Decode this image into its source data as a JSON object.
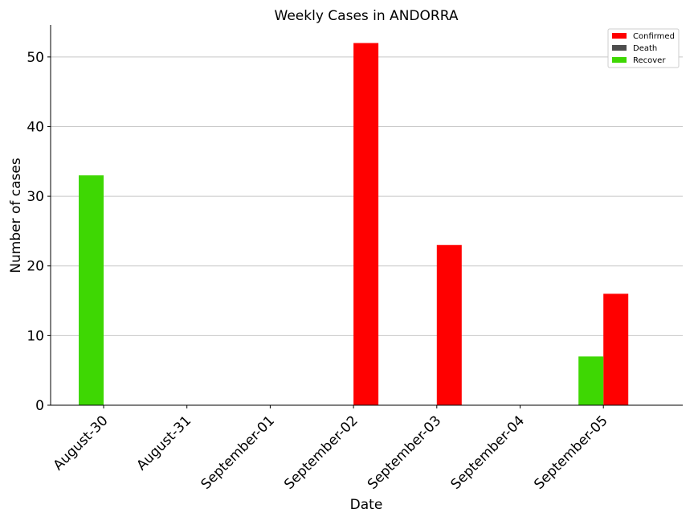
{
  "chart_data": {
    "type": "bar",
    "title": "Weekly Cases in ANDORRA",
    "xlabel": "Date",
    "ylabel": "Number of cases",
    "categories": [
      "August-30",
      "August-31",
      "September-01",
      "September-02",
      "September-03",
      "September-04",
      "September-05"
    ],
    "series": [
      {
        "name": "Confirmed",
        "color": "#ff0000",
        "values": [
          0,
          0,
          0,
          52,
          23,
          0,
          16
        ]
      },
      {
        "name": "Death",
        "color": "#4d4d4d",
        "values": [
          0,
          0,
          0,
          0,
          0,
          0,
          0
        ]
      },
      {
        "name": "Recover",
        "color": "#3ed703",
        "values": [
          33,
          0,
          0,
          0,
          0,
          0,
          7
        ]
      }
    ],
    "ylim": [
      0,
      54.6
    ],
    "yticks": [
      0,
      10,
      20,
      30,
      40,
      50
    ],
    "grid": "y",
    "legend_position": "top-right"
  }
}
